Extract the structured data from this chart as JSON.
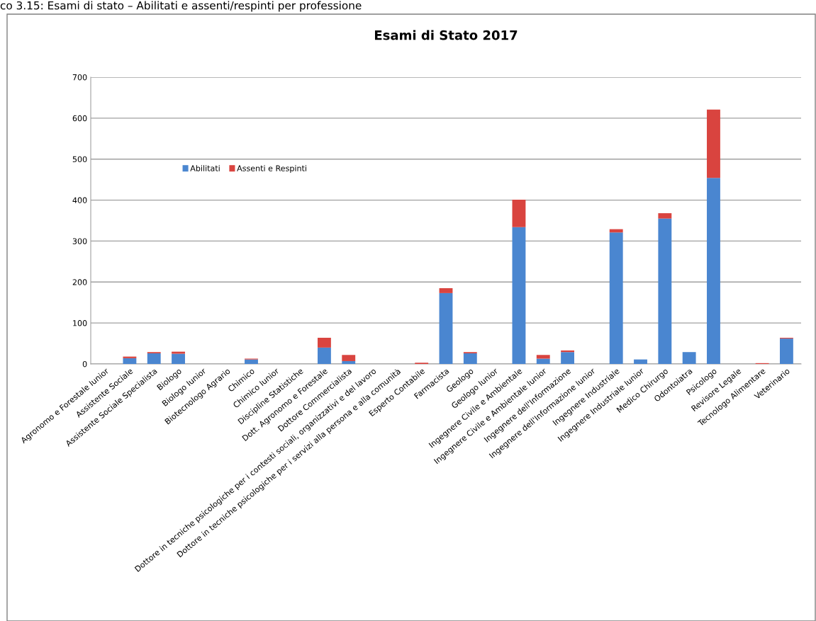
{
  "chart_data": {
    "type": "bar",
    "title": "Esami di Stato 2017",
    "stacked": true,
    "annotations": [
      "co 3.15: Esami di stato – Abilitati e assenti/respinti per professione"
    ],
    "categories": [
      "Agronomo e Forestale Iunior",
      "Assistente Sociale",
      "Assistente Sociale Specialista",
      "Biologo",
      "Biologo Iunior",
      "Biotecnologo Agrario",
      "Chimico",
      "Chimico Iunior",
      "Discipline Statistiche",
      "Dott. Agronomo e Forestale",
      "Dottore Commercialista",
      "Dottore in tecniche psicologiche per i contesti sociali, organizzativi e del lavoro",
      "Dottore in tecniche psicologiche per i servizi alla persona e alla comunità",
      "Esperto Contabile",
      "Farmacista",
      "Geologo",
      "Geologo Iunior",
      "Ingegnere Civile e Ambientale",
      "Ingegnere Civile e Ambientale Iunior",
      "Ingegnere dell'Informazione",
      "Ingegnere dell'Informazione Iunior",
      "Ingegnere Industriale",
      "Ingegnere Industriale Iunior",
      "Medico Chirurgo",
      "Odontoiatra",
      "Psicologo",
      "Revisore Legale",
      "Tecnologo Alimentare",
      "Veterinario"
    ],
    "series": [
      {
        "name": "Abilitati",
        "color": "#4a86d0",
        "values": [
          0,
          14,
          26,
          25,
          0,
          0,
          11,
          0,
          0,
          40,
          7,
          0,
          0,
          0,
          173,
          26,
          0,
          334,
          13,
          29,
          0,
          321,
          11,
          355,
          29,
          454,
          0,
          0,
          62
        ]
      },
      {
        "name": "Assenti e Respinti",
        "color": "#d9443f",
        "values": [
          0,
          4,
          3,
          5,
          0,
          0,
          2,
          0,
          0,
          24,
          15,
          0,
          0,
          3,
          12,
          3,
          0,
          67,
          9,
          4,
          0,
          8,
          0,
          13,
          0,
          167,
          0,
          2,
          2
        ]
      }
    ],
    "ylim": [
      0,
      700
    ],
    "yticks": [
      0,
      100,
      200,
      300,
      400,
      500,
      600,
      700
    ],
    "grid": "y",
    "legend": "left"
  }
}
